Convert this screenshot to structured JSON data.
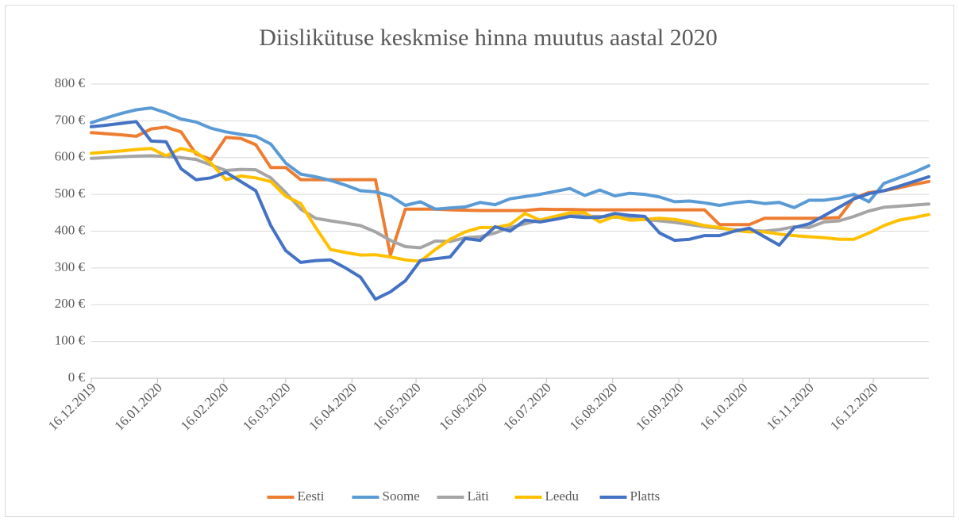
{
  "chart_data": {
    "type": "line",
    "title": "Diislikütuse keskmise hinna muutus aastal 2020",
    "x": [
      "16.12.2019",
      "23.12.2019",
      "30.12.2019",
      "06.01.2020",
      "13.01.2020",
      "20.01.2020",
      "27.01.2020",
      "03.02.2020",
      "10.02.2020",
      "17.02.2020",
      "24.02.2020",
      "02.03.2020",
      "09.03.2020",
      "16.03.2020",
      "23.03.2020",
      "30.03.2020",
      "06.04.2020",
      "13.04.2020",
      "20.04.2020",
      "27.04.2020",
      "04.05.2020",
      "11.05.2020",
      "18.05.2020",
      "25.05.2020",
      "01.06.2020",
      "08.06.2020",
      "15.06.2020",
      "22.06.2020",
      "29.06.2020",
      "06.07.2020",
      "13.07.2020",
      "20.07.2020",
      "27.07.2020",
      "03.08.2020",
      "10.08.2020",
      "17.08.2020",
      "24.08.2020",
      "31.08.2020",
      "07.09.2020",
      "14.09.2020",
      "21.09.2020",
      "28.09.2020",
      "05.10.2020",
      "12.10.2020",
      "19.10.2020",
      "26.10.2020",
      "02.11.2020",
      "09.11.2020",
      "16.11.2020",
      "23.11.2020",
      "30.11.2020",
      "07.12.2020",
      "14.12.2020",
      "21.12.2020",
      "28.12.2020",
      "04.01.2021",
      "11.01.2021"
    ],
    "series": [
      {
        "name": "Eesti",
        "color": "#ed7d31",
        "values": [
          668,
          665,
          662,
          658,
          678,
          683,
          670,
          610,
          595,
          655,
          652,
          635,
          573,
          573,
          540,
          540,
          540,
          540,
          540,
          540,
          335,
          460,
          460,
          460,
          458,
          457,
          456,
          456,
          456,
          456,
          460,
          459,
          459,
          458,
          458,
          458,
          458,
          458,
          458,
          458,
          458,
          458,
          418,
          418,
          418,
          435,
          435,
          435,
          435,
          435,
          437,
          490,
          505,
          510,
          518,
          527,
          535
        ]
      },
      {
        "name": "Soome",
        "color": "#5b9bd5",
        "values": [
          695,
          708,
          720,
          730,
          735,
          722,
          705,
          697,
          680,
          670,
          663,
          658,
          637,
          585,
          555,
          548,
          538,
          525,
          510,
          507,
          496,
          470,
          480,
          460,
          463,
          466,
          478,
          472,
          488,
          494,
          500,
          508,
          516,
          497,
          512,
          496,
          503,
          500,
          493,
          480,
          482,
          477,
          470,
          477,
          481,
          475,
          478,
          464,
          484,
          484,
          490,
          500,
          480,
          530,
          545,
          560,
          578
        ]
      },
      {
        "name": "Läti",
        "color": "#a5a5a5",
        "values": [
          598,
          600,
          602,
          604,
          605,
          603,
          600,
          595,
          580,
          565,
          568,
          567,
          545,
          505,
          460,
          435,
          428,
          422,
          415,
          398,
          375,
          358,
          355,
          373,
          372,
          382,
          385,
          395,
          410,
          420,
          430,
          440,
          445,
          440,
          440,
          438,
          436,
          432,
          428,
          424,
          418,
          412,
          408,
          404,
          402,
          400,
          404,
          412,
          410,
          425,
          428,
          440,
          455,
          465,
          468,
          471,
          474
        ]
      },
      {
        "name": "Leedu",
        "color": "#ffc000",
        "values": [
          612,
          615,
          618,
          622,
          625,
          605,
          625,
          615,
          585,
          540,
          550,
          545,
          535,
          495,
          475,
          410,
          350,
          342,
          335,
          336,
          330,
          322,
          318,
          350,
          378,
          398,
          410,
          410,
          418,
          448,
          430,
          440,
          450,
          450,
          425,
          440,
          430,
          432,
          435,
          432,
          425,
          415,
          410,
          402,
          398,
          398,
          392,
          388,
          385,
          382,
          378,
          378,
          395,
          415,
          430,
          437,
          445
        ]
      },
      {
        "name": "Platts",
        "color": "#4472c4",
        "values": [
          684,
          688,
          693,
          698,
          645,
          643,
          570,
          540,
          545,
          560,
          535,
          510,
          415,
          347,
          315,
          320,
          322,
          300,
          275,
          215,
          235,
          265,
          320,
          325,
          330,
          380,
          375,
          412,
          400,
          430,
          425,
          432,
          440,
          437,
          437,
          448,
          443,
          440,
          395,
          375,
          378,
          388,
          388,
          400,
          408,
          385,
          362,
          410,
          420,
          442,
          465,
          488,
          502,
          510,
          522,
          535,
          548
        ]
      }
    ],
    "xlim": [
      "16.12.2019",
      "11.01.2021"
    ],
    "xticks": [
      "16.12.2019",
      "16.01.2020",
      "16.02.2020",
      "16.03.2020",
      "16.04.2020",
      "16.05.2020",
      "16.06.2020",
      "16.07.2020",
      "16.08.2020",
      "16.09.2020",
      "16.10.2020",
      "16.11.2020",
      "16.12.2020"
    ],
    "ylim": [
      0,
      800
    ],
    "yticks": [
      {
        "value": 0,
        "label": "0 €"
      },
      {
        "value": 100,
        "label": "100 €"
      },
      {
        "value": 200,
        "label": "200 €"
      },
      {
        "value": 300,
        "label": "300 €"
      },
      {
        "value": 400,
        "label": "400 €"
      },
      {
        "value": 500,
        "label": "500 €"
      },
      {
        "value": 600,
        "label": "600 €"
      },
      {
        "value": 700,
        "label": "700 €"
      },
      {
        "value": 800,
        "label": "800 €"
      }
    ],
    "grid": true,
    "legend": "bottom"
  }
}
